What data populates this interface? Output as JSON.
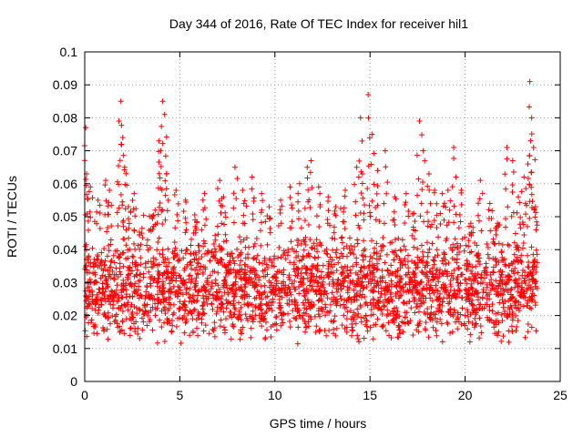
{
  "chart_data": {
    "type": "scatter",
    "title": "Day 344 of 2016, Rate Of TEC Index for receiver hil1",
    "xlabel": "GPS time / hours",
    "ylabel": "ROTI / TECUs",
    "xlim": [
      0,
      25
    ],
    "ylim": [
      0,
      0.1
    ],
    "x_ticks": [
      "0",
      "5",
      "10",
      "15",
      "20",
      "25"
    ],
    "y_ticks": [
      "0",
      "0.01",
      "0.02",
      "0.03",
      "0.04",
      "0.05",
      "0.06",
      "0.07",
      "0.08",
      "0.09",
      "0.1"
    ],
    "grid": true,
    "marker": "plus",
    "color": "#ff0000",
    "series": [
      {
        "peaks": [
          [
            0.05,
            0.077
          ],
          [
            0.1,
            0.063
          ],
          [
            0.3,
            0.059
          ],
          [
            0.7,
            0.055
          ],
          [
            1.1,
            0.061
          ],
          [
            1.3,
            0.058
          ],
          [
            1.8,
            0.079
          ],
          [
            1.9,
            0.085
          ],
          [
            2.0,
            0.074
          ],
          [
            2.1,
            0.065
          ],
          [
            2.3,
            0.053
          ],
          [
            2.6,
            0.057
          ],
          [
            3.0,
            0.045
          ],
          [
            3.5,
            0.05
          ],
          [
            3.7,
            0.052
          ],
          [
            3.9,
            0.073
          ],
          [
            4.0,
            0.07
          ],
          [
            4.1,
            0.085
          ],
          [
            4.2,
            0.081
          ],
          [
            4.3,
            0.063
          ],
          [
            4.8,
            0.058
          ],
          [
            5.3,
            0.055
          ],
          [
            5.8,
            0.049
          ],
          [
            6.3,
            0.057
          ],
          [
            7.1,
            0.061
          ],
          [
            7.3,
            0.056
          ],
          [
            7.9,
            0.065
          ],
          [
            8.3,
            0.058
          ],
          [
            8.8,
            0.062
          ],
          [
            9.3,
            0.057
          ],
          [
            9.7,
            0.053
          ],
          [
            10.3,
            0.055
          ],
          [
            10.8,
            0.059
          ],
          [
            11.3,
            0.06
          ],
          [
            11.7,
            0.065
          ],
          [
            11.9,
            0.067
          ],
          [
            12.3,
            0.059
          ],
          [
            12.8,
            0.056
          ],
          [
            13.2,
            0.053
          ],
          [
            13.7,
            0.058
          ],
          [
            14.3,
            0.065
          ],
          [
            14.5,
            0.08
          ],
          [
            14.6,
            0.063
          ],
          [
            14.9,
            0.087
          ],
          [
            15.1,
            0.075
          ],
          [
            15.4,
            0.064
          ],
          [
            15.8,
            0.07
          ],
          [
            16.3,
            0.056
          ],
          [
            16.9,
            0.057
          ],
          [
            17.3,
            0.051
          ],
          [
            17.6,
            0.079
          ],
          [
            17.8,
            0.07
          ],
          [
            18.1,
            0.063
          ],
          [
            18.4,
            0.058
          ],
          [
            18.8,
            0.057
          ],
          [
            19.1,
            0.058
          ],
          [
            19.4,
            0.071
          ],
          [
            19.8,
            0.058
          ],
          [
            20.3,
            0.048
          ],
          [
            20.8,
            0.061
          ],
          [
            21.3,
            0.054
          ],
          [
            21.7,
            0.048
          ],
          [
            22.2,
            0.071
          ],
          [
            22.5,
            0.067
          ],
          [
            22.8,
            0.056
          ],
          [
            23.1,
            0.062
          ],
          [
            23.3,
            0.066
          ],
          [
            23.4,
            0.091
          ],
          [
            23.5,
            0.08
          ],
          [
            23.6,
            0.071
          ],
          [
            23.7,
            0.053
          ]
        ],
        "baseline_range": [
          0.005,
          0.045
        ],
        "x_range": [
          0,
          23.8
        ]
      }
    ]
  }
}
